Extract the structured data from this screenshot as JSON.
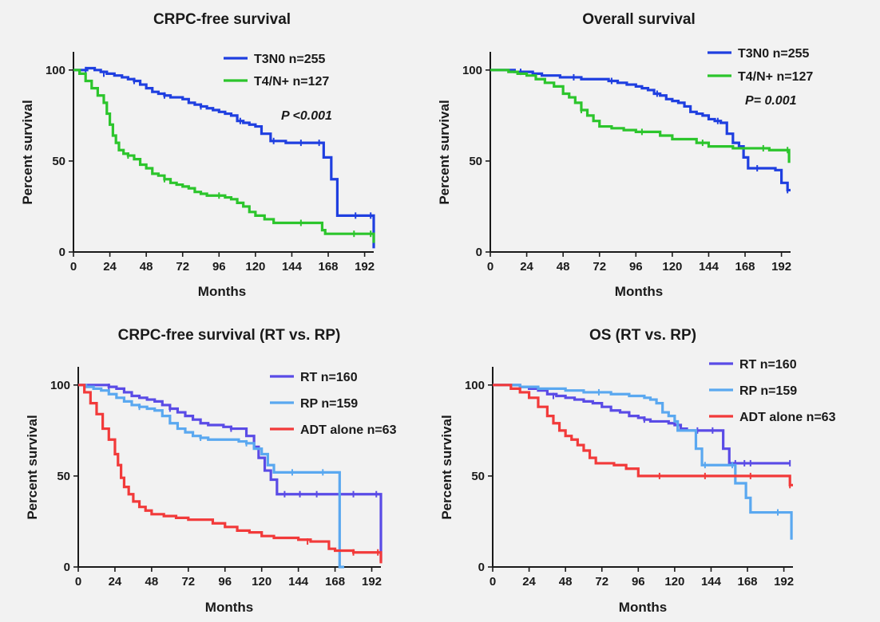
{
  "chart_data": [
    {
      "type": "line",
      "title": "CRPC-free survival",
      "xlabel": "Months",
      "ylabel": "Percent survival",
      "xlim": [
        0,
        198
      ],
      "ylim": [
        0,
        110
      ],
      "xticks": [
        0,
        24,
        48,
        72,
        96,
        120,
        144,
        168,
        192
      ],
      "yticks": [
        0,
        50,
        100
      ],
      "legend_position": "top-right",
      "annotation": "P <0.001",
      "series": [
        {
          "name": "T3N0 n=255",
          "color": "#1f3fe0",
          "x": [
            0,
            5,
            9,
            14,
            18,
            22,
            27,
            32,
            36,
            40,
            44,
            48,
            52,
            56,
            60,
            64,
            68,
            72,
            76,
            80,
            84,
            88,
            92,
            96,
            100,
            104,
            108,
            112,
            116,
            120,
            124,
            130,
            140,
            150,
            160,
            164,
            165,
            170,
            174,
            186,
            197,
            198
          ],
          "y": [
            100,
            100,
            101,
            100,
            99,
            98,
            97,
            96,
            95,
            94,
            92,
            90,
            88,
            87,
            86,
            85,
            85,
            84,
            82,
            81,
            80,
            79,
            78,
            77,
            76,
            75,
            72,
            71,
            70,
            69,
            65,
            61,
            60,
            60,
            60,
            60,
            52,
            40,
            20,
            20,
            20,
            2
          ],
          "censor_x": [
            8,
            20,
            40,
            60,
            84,
            110,
            132,
            150,
            162,
            186,
            196
          ],
          "censor_y": [
            100,
            98,
            94,
            86,
            80,
            72,
            61,
            60,
            60,
            20,
            20
          ]
        },
        {
          "name": "T4/N+ n=127",
          "color": "#2cc52c",
          "x": [
            0,
            4,
            8,
            12,
            16,
            20,
            22,
            24,
            26,
            28,
            30,
            33,
            36,
            40,
            44,
            48,
            52,
            56,
            60,
            64,
            68,
            72,
            76,
            80,
            84,
            88,
            92,
            96,
            100,
            104,
            108,
            112,
            116,
            120,
            126,
            132,
            150,
            164,
            166,
            185,
            196,
            198
          ],
          "y": [
            100,
            98,
            94,
            90,
            86,
            82,
            76,
            70,
            64,
            60,
            56,
            54,
            53,
            51,
            48,
            46,
            43,
            42,
            40,
            38,
            37,
            36,
            35,
            33,
            32,
            31,
            31,
            31,
            30,
            29,
            27,
            25,
            22,
            20,
            18,
            16,
            16,
            12,
            10,
            10,
            10,
            5
          ],
          "censor_x": [
            36,
            60,
            96,
            150,
            185,
            196
          ],
          "censor_y": [
            53,
            40,
            31,
            16,
            10,
            10
          ]
        }
      ]
    },
    {
      "type": "line",
      "title": "Overall survival",
      "xlabel": "Months",
      "ylabel": "Percent survival",
      "xlim": [
        0,
        198
      ],
      "ylim": [
        0,
        110
      ],
      "xticks": [
        0,
        24,
        48,
        72,
        96,
        120,
        144,
        168,
        192
      ],
      "yticks": [
        0,
        50,
        100
      ],
      "legend_position": "top-right",
      "annotation": "P= 0.001",
      "series": [
        {
          "name": "T3N0 n=255",
          "color": "#1f3fe0",
          "x": [
            0,
            5,
            10,
            16,
            22,
            28,
            34,
            40,
            46,
            52,
            60,
            66,
            72,
            78,
            84,
            90,
            96,
            100,
            104,
            108,
            112,
            116,
            120,
            124,
            128,
            132,
            136,
            140,
            144,
            148,
            152,
            156,
            160,
            164,
            167,
            170,
            180,
            188,
            192,
            196,
            198
          ],
          "y": [
            100,
            100,
            100,
            99,
            99,
            98,
            97,
            97,
            96,
            96,
            95,
            95,
            95,
            94,
            93,
            92,
            91,
            90,
            89,
            87,
            86,
            84,
            83,
            82,
            80,
            77,
            76,
            75,
            73,
            72,
            71,
            65,
            60,
            58,
            52,
            46,
            46,
            45,
            38,
            34,
            34
          ],
          "censor_x": [
            20,
            55,
            80,
            110,
            150,
            176,
            196
          ],
          "censor_y": [
            99,
            96,
            94,
            87,
            72,
            46,
            34
          ]
        },
        {
          "name": "T4/N+ n=127",
          "color": "#2cc52c",
          "x": [
            0,
            6,
            12,
            18,
            24,
            30,
            36,
            42,
            48,
            52,
            56,
            60,
            64,
            68,
            72,
            80,
            88,
            96,
            104,
            112,
            120,
            128,
            136,
            144,
            152,
            160,
            168,
            176,
            184,
            192,
            196,
            197
          ],
          "y": [
            100,
            100,
            99,
            98,
            97,
            95,
            93,
            91,
            87,
            85,
            82,
            78,
            75,
            72,
            69,
            68,
            67,
            66,
            66,
            64,
            62,
            62,
            60,
            58,
            58,
            57,
            57,
            57,
            56,
            56,
            56,
            49
          ],
          "censor_x": [
            60,
            100,
            140,
            180,
            196
          ],
          "censor_y": [
            78,
            66,
            60,
            57,
            56
          ]
        }
      ]
    },
    {
      "type": "line",
      "title": "CRPC-free survival (RT vs. RP)",
      "xlabel": "Months",
      "ylabel": "Percent survival",
      "xlim": [
        0,
        198
      ],
      "ylim": [
        0,
        110
      ],
      "xticks": [
        0,
        24,
        48,
        72,
        96,
        120,
        144,
        168,
        192
      ],
      "yticks": [
        0,
        50,
        100
      ],
      "legend_position": "top-right",
      "series": [
        {
          "name": "RT n=160",
          "color": "#5a4be6",
          "x": [
            0,
            5,
            10,
            15,
            20,
            25,
            30,
            35,
            40,
            45,
            50,
            55,
            60,
            65,
            70,
            75,
            80,
            85,
            90,
            95,
            100,
            105,
            110,
            115,
            118,
            122,
            126,
            130,
            140,
            160,
            180,
            196,
            198
          ],
          "y": [
            100,
            100,
            100,
            100,
            99,
            98,
            96,
            94,
            93,
            92,
            91,
            89,
            87,
            85,
            83,
            81,
            79,
            78,
            78,
            77,
            76,
            76,
            72,
            66,
            60,
            53,
            48,
            40,
            40,
            40,
            40,
            40,
            3
          ],
          "censor_x": [
            20,
            60,
            100,
            135,
            145,
            156,
            180,
            195
          ],
          "censor_y": [
            99,
            87,
            76,
            40,
            40,
            40,
            40,
            40
          ]
        },
        {
          "name": "RP n=159",
          "color": "#5aa8f0",
          "x": [
            0,
            5,
            10,
            15,
            20,
            25,
            30,
            35,
            40,
            45,
            50,
            55,
            60,
            65,
            70,
            75,
            80,
            85,
            90,
            95,
            100,
            105,
            110,
            115,
            120,
            124,
            128,
            132,
            140,
            150,
            160,
            170,
            171,
            174
          ],
          "y": [
            100,
            99,
            98,
            97,
            95,
            93,
            91,
            89,
            88,
            87,
            86,
            83,
            79,
            76,
            74,
            72,
            71,
            70,
            70,
            70,
            70,
            69,
            68,
            65,
            62,
            56,
            52,
            52,
            52,
            52,
            52,
            52,
            0,
            0
          ],
          "censor_x": [
            40,
            80,
            110,
            140,
            160
          ],
          "censor_y": [
            88,
            71,
            68,
            52,
            52
          ]
        },
        {
          "name": "ADT alone n=63",
          "color": "#f23a3a",
          "x": [
            0,
            4,
            8,
            12,
            16,
            20,
            24,
            26,
            28,
            30,
            33,
            36,
            40,
            44,
            48,
            56,
            64,
            72,
            80,
            88,
            96,
            104,
            112,
            120,
            128,
            136,
            144,
            152,
            160,
            164,
            168,
            180,
            196,
            198
          ],
          "y": [
            100,
            96,
            90,
            84,
            76,
            70,
            62,
            56,
            49,
            44,
            40,
            36,
            33,
            31,
            29,
            28,
            27,
            26,
            26,
            24,
            22,
            20,
            19,
            17,
            16,
            16,
            15,
            14,
            14,
            10,
            9,
            8,
            8,
            2
          ],
          "censor_x": [
            150,
            180,
            196
          ],
          "censor_y": [
            14,
            8,
            8
          ]
        }
      ]
    },
    {
      "type": "line",
      "title": "OS (RT vs. RP)",
      "xlabel": "Months",
      "ylabel": "Percent survival",
      "xlim": [
        0,
        198
      ],
      "ylim": [
        0,
        110
      ],
      "xticks": [
        0,
        24,
        48,
        72,
        96,
        120,
        144,
        168,
        192
      ],
      "yticks": [
        0,
        50,
        100
      ],
      "legend_position": "top-right",
      "series": [
        {
          "name": "RT n=160",
          "color": "#5a4be6",
          "x": [
            0,
            6,
            12,
            18,
            24,
            30,
            36,
            42,
            48,
            54,
            60,
            66,
            72,
            78,
            84,
            90,
            96,
            100,
            104,
            108,
            112,
            116,
            120,
            124,
            128,
            132,
            140,
            148,
            150,
            152,
            156,
            164,
            176,
            196
          ],
          "y": [
            100,
            100,
            100,
            99,
            98,
            97,
            95,
            94,
            93,
            92,
            91,
            90,
            88,
            86,
            85,
            83,
            82,
            81,
            80,
            80,
            80,
            79,
            78,
            76,
            75,
            75,
            75,
            75,
            75,
            65,
            57,
            57,
            57,
            57
          ],
          "censor_x": [
            40,
            100,
            135,
            145,
            160,
            166,
            170,
            196
          ],
          "censor_y": [
            94,
            81,
            75,
            75,
            57,
            57,
            57,
            57
          ]
        },
        {
          "name": "RP n=159",
          "color": "#5aa8f0",
          "x": [
            0,
            6,
            12,
            18,
            24,
            30,
            36,
            42,
            48,
            54,
            60,
            66,
            72,
            78,
            84,
            90,
            96,
            100,
            104,
            108,
            112,
            116,
            120,
            122,
            126,
            130,
            134,
            138,
            142,
            150,
            156,
            160,
            164,
            167,
            170,
            180,
            190,
            196,
            197
          ],
          "y": [
            100,
            100,
            100,
            99,
            99,
            98,
            98,
            98,
            97,
            97,
            96,
            96,
            96,
            95,
            95,
            94,
            94,
            93,
            92,
            90,
            85,
            83,
            80,
            75,
            75,
            75,
            65,
            56,
            56,
            56,
            56,
            46,
            46,
            38,
            30,
            30,
            30,
            30,
            15
          ],
          "censor_x": [
            70,
            140,
            158,
            188
          ],
          "censor_y": [
            96,
            56,
            56,
            30
          ]
        },
        {
          "name": "ADT alone n=63",
          "color": "#f23a3a",
          "x": [
            0,
            6,
            12,
            18,
            24,
            30,
            36,
            40,
            44,
            48,
            52,
            56,
            60,
            64,
            68,
            72,
            80,
            88,
            96,
            108,
            120,
            132,
            144,
            156,
            168,
            180,
            192,
            196,
            198
          ],
          "y": [
            100,
            100,
            98,
            96,
            93,
            88,
            83,
            79,
            75,
            72,
            70,
            67,
            64,
            60,
            57,
            57,
            56,
            54,
            50,
            50,
            50,
            50,
            50,
            50,
            50,
            50,
            50,
            45,
            45
          ],
          "censor_x": [
            110,
            140,
            170,
            196
          ],
          "censor_y": [
            50,
            50,
            50,
            45
          ]
        }
      ]
    }
  ]
}
